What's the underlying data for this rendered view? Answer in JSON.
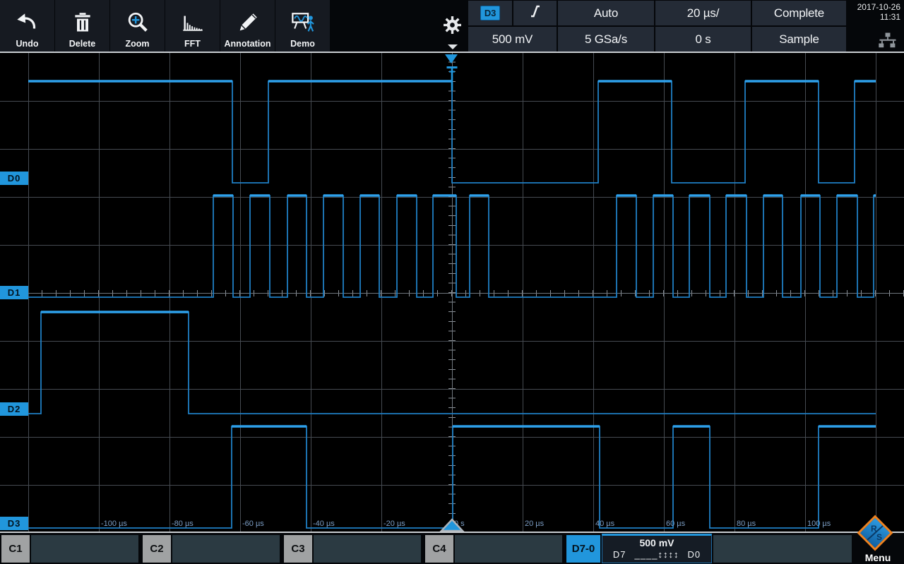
{
  "header": {
    "toolbar": [
      {
        "label": "Undo",
        "icon": "undo-icon"
      },
      {
        "label": "Delete",
        "icon": "delete-icon"
      },
      {
        "label": "Zoom",
        "icon": "zoom-icon"
      },
      {
        "label": "FFT",
        "icon": "fft-icon"
      },
      {
        "label": "Annotation",
        "icon": "annotation-icon"
      },
      {
        "label": "Demo",
        "icon": "demo-icon"
      }
    ],
    "trigger": {
      "source": "D3",
      "slope": "rising"
    },
    "status": {
      "mode": "Auto",
      "timebase": "20 µs/",
      "acq_state": "Complete",
      "vertical_scale": "500 mV",
      "sample_rate": "5 GSa/s",
      "horizontal_position": "0 s",
      "acq_mode": "Sample"
    },
    "datetime": {
      "date": "2017-10-26",
      "time": "11:31"
    }
  },
  "chart_data": {
    "type": "digital-timing",
    "time_per_division": "20 µs",
    "x_range_us": [
      -120,
      120
    ],
    "trigger_time_us": 0,
    "tick_labels": [
      {
        "us": -100,
        "text": "-100 µs"
      },
      {
        "us": -80,
        "text": "-80 µs"
      },
      {
        "us": -60,
        "text": "-60 µs"
      },
      {
        "us": -40,
        "text": "-40 µs"
      },
      {
        "us": -20,
        "text": "-20 µs"
      },
      {
        "us": 0,
        "text": "0 s"
      },
      {
        "us": 20,
        "text": "20 µs"
      },
      {
        "us": 40,
        "text": "40 µs"
      },
      {
        "us": 60,
        "text": "60 µs"
      },
      {
        "us": 80,
        "text": "80 µs"
      },
      {
        "us": 100,
        "text": "100 µs"
      }
    ],
    "channels": [
      {
        "name": "D0",
        "initial": "high",
        "edges_us": [
          -62.2,
          -52,
          0,
          41.4,
          62.2,
          83,
          103.8,
          114
        ]
      },
      {
        "name": "D1",
        "initial": "low",
        "edges_us": [
          -67.6,
          -62,
          -57.2,
          -51.6,
          -46.6,
          -41.2,
          -36.4,
          -30.8,
          -26,
          -20.6,
          -15.6,
          -10,
          -5.4,
          1.2,
          5,
          10.4,
          46.6,
          52.2,
          57,
          62.6,
          67.2,
          73,
          77.6,
          83.4,
          88.2,
          93.6,
          98.8,
          104.2,
          109,
          114.8,
          119.4
        ]
      },
      {
        "name": "D2",
        "initial": "low",
        "edges_us": [
          -116.4,
          -74.6
        ]
      },
      {
        "name": "D3",
        "initial": "low",
        "edges_us": [
          -62.4,
          -41.2,
          0.2,
          41.8,
          62.6,
          73,
          103.8
        ]
      }
    ]
  },
  "bottom_bar": {
    "analog_channels": [
      {
        "label": "C1"
      },
      {
        "label": "C2"
      },
      {
        "label": "C3"
      },
      {
        "label": "C4"
      }
    ],
    "logic_group": {
      "label": "D7-0",
      "scale": "500 mV",
      "bus_prefix": "D7",
      "bus_pattern": "____↕↕↕↕",
      "bus_suffix": "D0"
    },
    "menu_label": "Menu",
    "logo_letters": {
      "top": "R",
      "bottom": "S"
    }
  },
  "colors": {
    "accent": "#2196dc",
    "trace_bright": "#2ea0ea",
    "trace_dim": "#1f7fc4",
    "grid": "#464b52",
    "axis_label": "#7b9dc4",
    "logo_orange": "#ee8220"
  }
}
